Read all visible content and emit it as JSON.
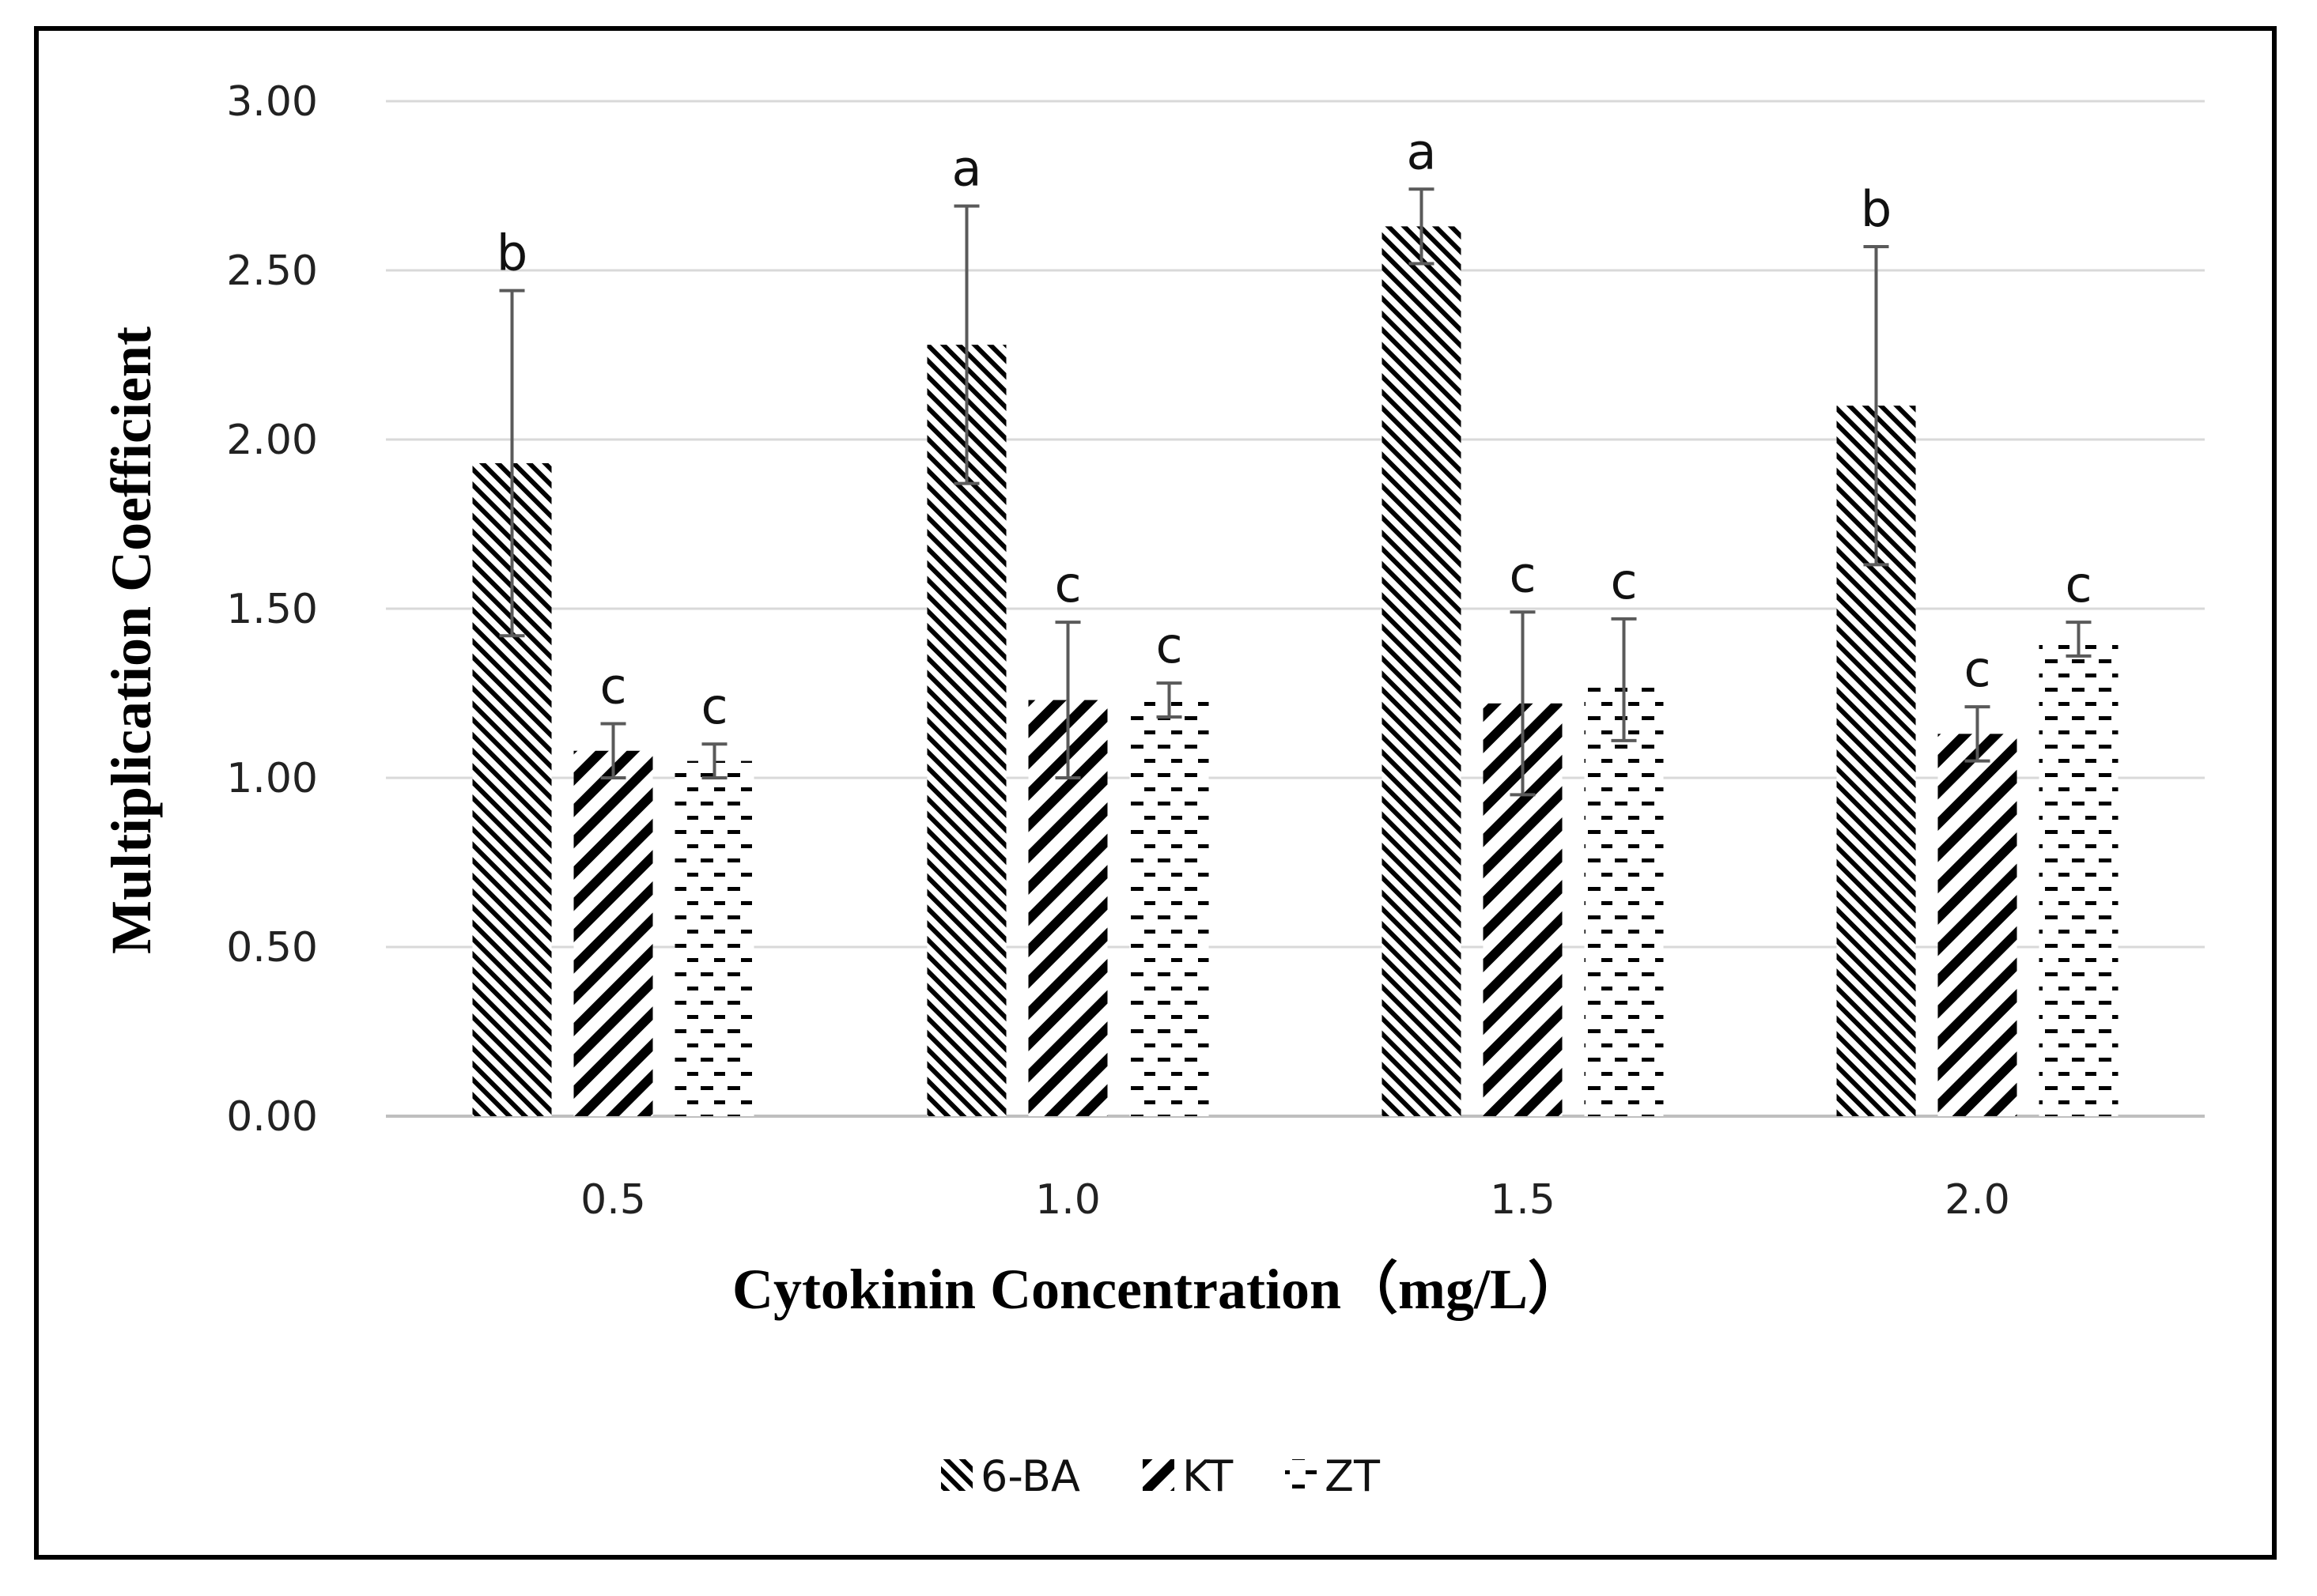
{
  "chart_data": {
    "type": "bar",
    "title": "",
    "xlabel": "Cytokinin Concentration（mg/L）",
    "ylabel": "Multiplication Coefficient",
    "categories": [
      "0.5",
      "1.0",
      "1.5",
      "2.0"
    ],
    "ylim": [
      0,
      3
    ],
    "yticks": [
      "0.00",
      "0.50",
      "1.00",
      "1.50",
      "2.00",
      "2.50",
      "3.00"
    ],
    "grid": true,
    "legend_position": "bottom",
    "series": [
      {
        "name": "6-BA",
        "values": [
          1.93,
          2.28,
          2.63,
          2.1
        ],
        "errors": [
          0.51,
          0.41,
          0.11,
          0.47
        ],
        "letters": [
          "b",
          "a",
          "a",
          "b"
        ]
      },
      {
        "name": "KT",
        "values": [
          1.08,
          1.23,
          1.22,
          1.13
        ],
        "errors": [
          0.08,
          0.23,
          0.27,
          0.08
        ],
        "letters": [
          "c",
          "c",
          "c",
          "c"
        ]
      },
      {
        "name": "ZT",
        "values": [
          1.05,
          1.23,
          1.29,
          1.41
        ],
        "errors": [
          0.05,
          0.05,
          0.18,
          0.05
        ],
        "letters": [
          "c",
          "c",
          "c",
          "c"
        ]
      }
    ]
  }
}
